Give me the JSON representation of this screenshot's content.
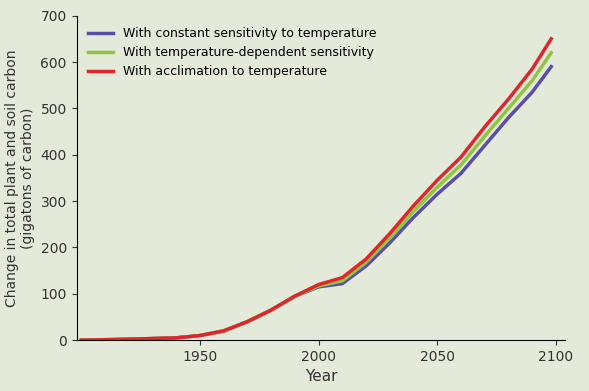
{
  "chart_data": {
    "type": "line",
    "x_label": "Year",
    "y_label": "Change in total plant and soil carbon\n(gigatons of carbon)",
    "x": [
      1900,
      1920,
      1940,
      1950,
      1960,
      1970,
      1980,
      1990,
      2000,
      2010,
      2020,
      2030,
      2040,
      2050,
      2060,
      2070,
      2080,
      2090,
      2098
    ],
    "series": [
      {
        "name": "With constant sensitivity to temperature",
        "color": "#5b4ea6",
        "values": [
          0,
          2,
          5,
          10,
          20,
          40,
          65,
          95,
          115,
          122,
          160,
          210,
          265,
          315,
          360,
          420,
          480,
          535,
          590
        ]
      },
      {
        "name": "With temperature-dependent sensitivity",
        "color": "#8dc63f",
        "values": [
          0,
          2,
          5,
          10,
          20,
          40,
          65,
          95,
          117,
          128,
          168,
          220,
          278,
          330,
          378,
          440,
          500,
          560,
          620
        ]
      },
      {
        "name": "With acclimation to temperature",
        "color": "#e0262b",
        "values": [
          0,
          2,
          5,
          10,
          20,
          40,
          65,
          95,
          120,
          135,
          175,
          230,
          290,
          345,
          395,
          460,
          520,
          585,
          650
        ]
      }
    ],
    "xlim": [
      1898,
      2104
    ],
    "xticks": [
      1950,
      2000,
      2050,
      2100
    ],
    "ylim": [
      0,
      700
    ],
    "yticks": [
      0,
      100,
      200,
      300,
      400,
      500,
      600,
      700
    ],
    "grid": false,
    "legend": "upper left"
  }
}
